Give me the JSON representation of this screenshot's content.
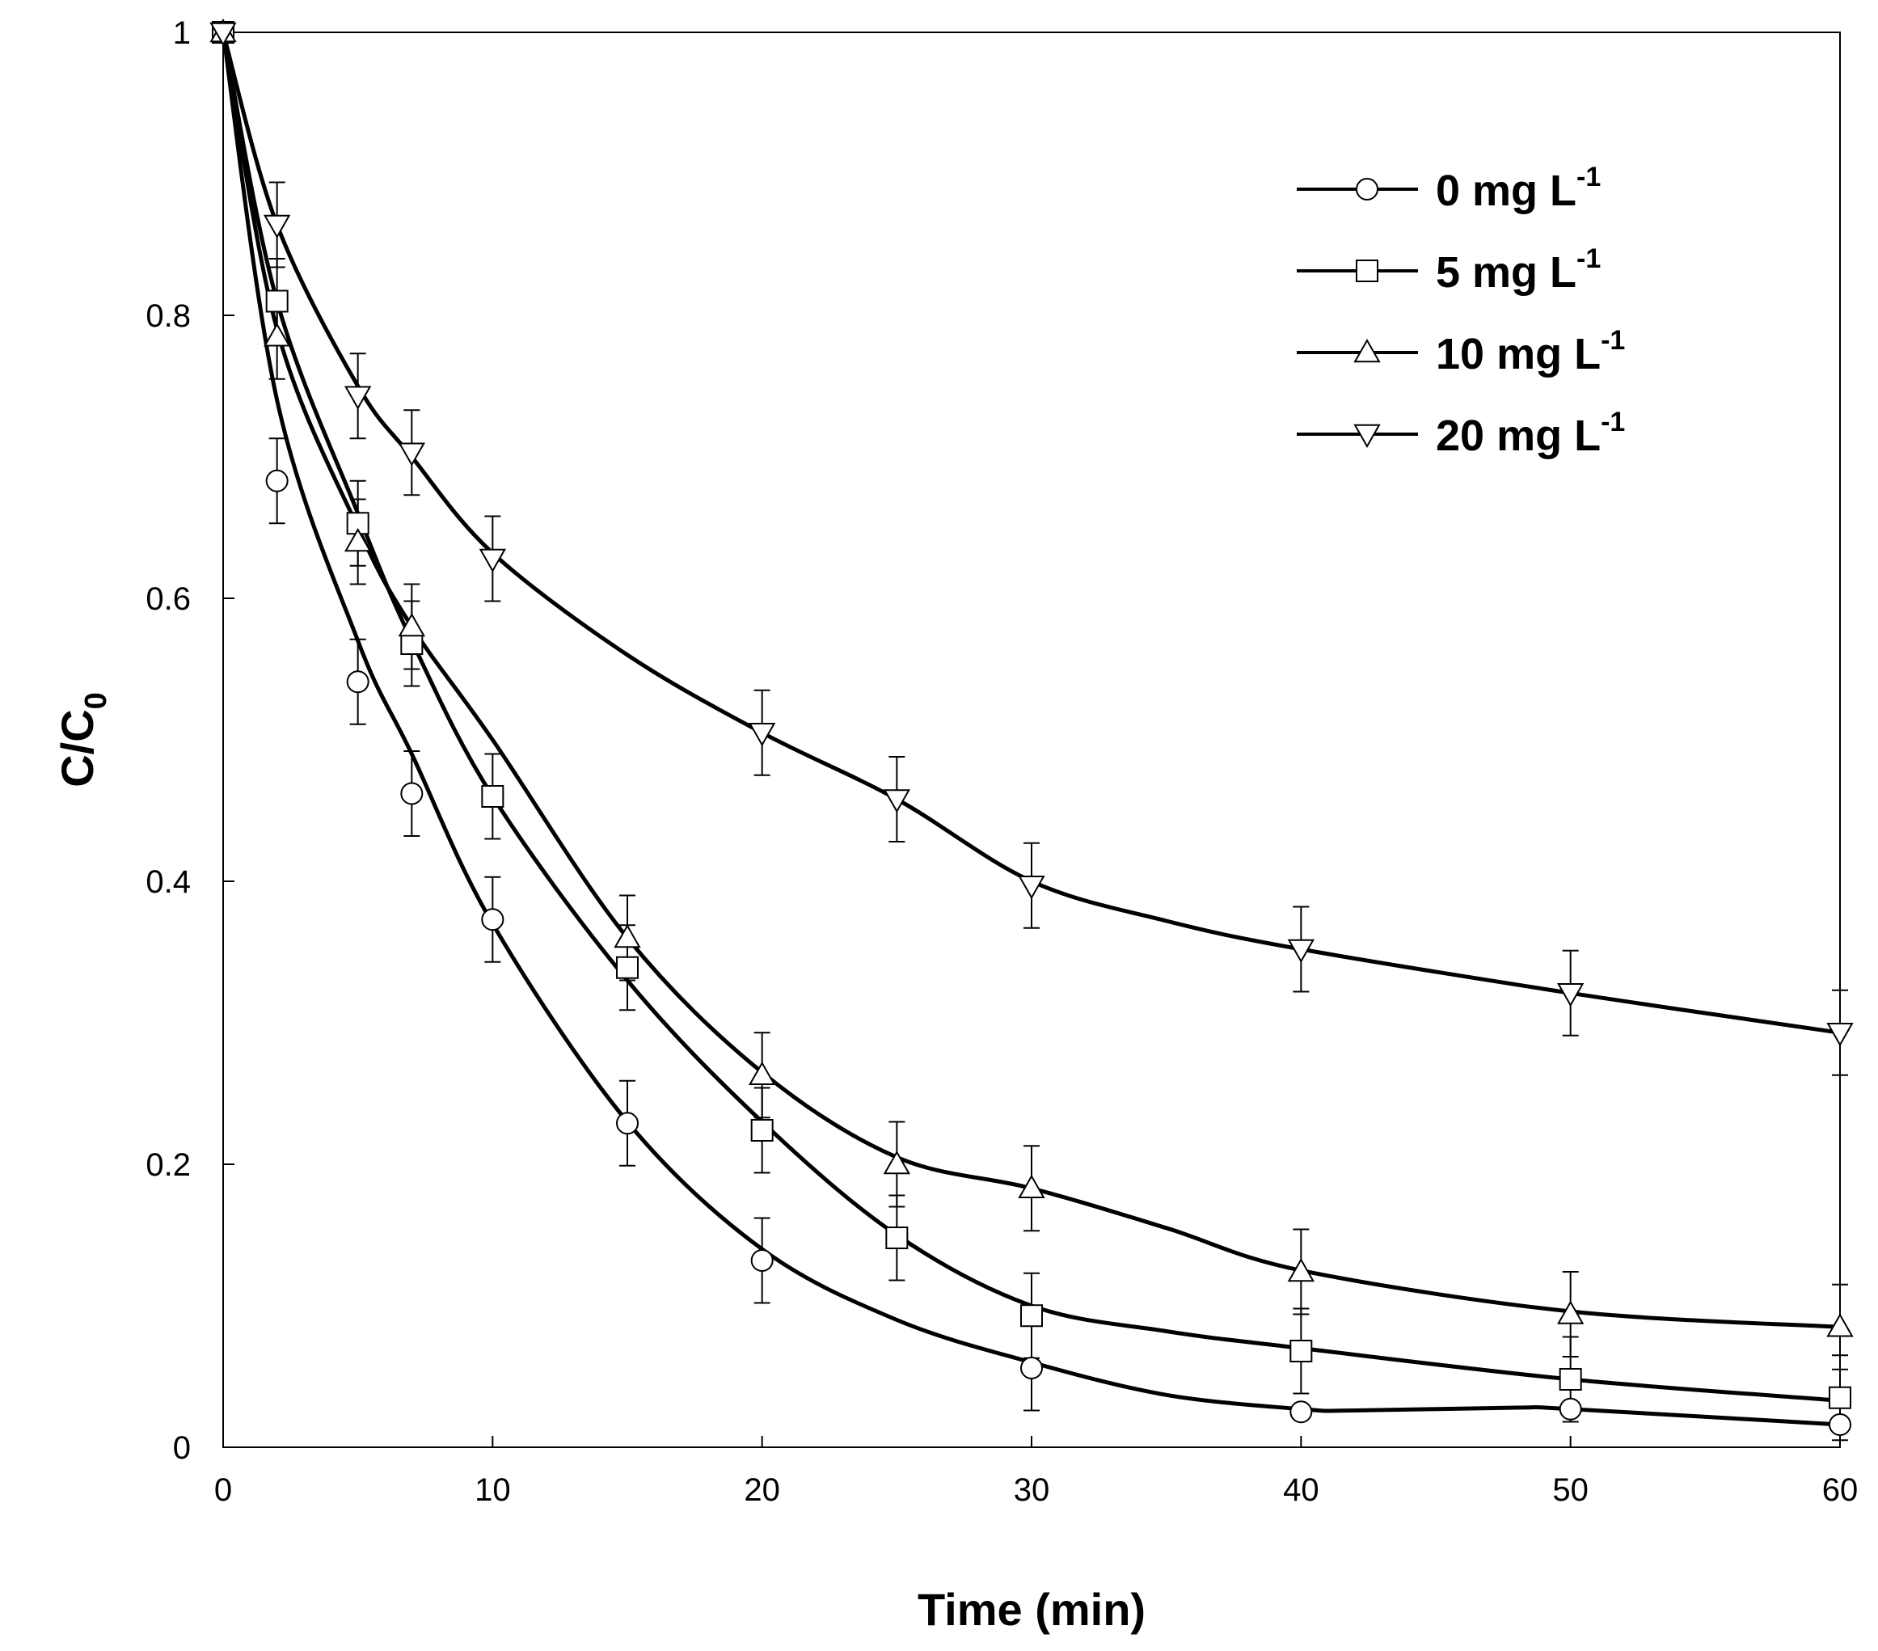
{
  "chart_data": {
    "type": "line",
    "title": "",
    "xlabel": "Time (min)",
    "ylabel": "C/C",
    "ylabel_subscript": "0",
    "xlim": [
      0,
      60
    ],
    "ylim": [
      0,
      1
    ],
    "xticks": [
      0,
      10,
      20,
      30,
      40,
      50,
      60
    ],
    "xtick_labels": [
      "0",
      "10",
      "20",
      "30",
      "40",
      "50",
      "60"
    ],
    "yticks": [
      0,
      0.2,
      0.4,
      0.6,
      0.8,
      1
    ],
    "ytick_labels": [
      "0",
      "0.2",
      "0.4",
      "0.6",
      "0.8",
      "1"
    ],
    "grid": false,
    "legend_position": "top-right",
    "x": [
      0,
      2,
      5,
      7,
      10,
      15,
      20,
      25,
      30,
      40,
      50,
      60
    ],
    "series": [
      {
        "name": "0 mg L-1",
        "label_main": "0 mg L",
        "label_sup": "-1",
        "marker": "circle",
        "values": [
          1.0,
          0.683,
          0.541,
          0.462,
          0.373,
          0.229,
          0.132,
          null,
          0.056,
          0.025,
          0.027,
          0.016
        ],
        "error": [
          0,
          0.03,
          0.03,
          0.03,
          0.03,
          0.03,
          0.03,
          null,
          0.03,
          0,
          0,
          0
        ]
      },
      {
        "name": "5 mg L-1",
        "label_main": "5 mg L",
        "label_sup": "-1",
        "marker": "square",
        "values": [
          1.0,
          0.81,
          0.653,
          0.568,
          0.46,
          0.339,
          0.224,
          0.148,
          0.093,
          0.068,
          0.048,
          0.035
        ],
        "error": [
          0,
          0.03,
          0.03,
          0.03,
          0.03,
          0.03,
          0.03,
          0.03,
          0.03,
          0.03,
          0.03,
          0.03
        ]
      },
      {
        "name": "10 mg L-1",
        "label_main": "10 mg L",
        "label_sup": "-1",
        "marker": "triangle-up",
        "values": [
          1.0,
          0.785,
          0.64,
          0.58,
          null,
          0.36,
          0.263,
          0.2,
          0.183,
          0.124,
          0.094,
          0.085
        ],
        "error": [
          0,
          0.03,
          0.03,
          0.03,
          null,
          0.03,
          0.03,
          0.03,
          0.03,
          0.03,
          0.03,
          0.03
        ]
      },
      {
        "name": "20 mg L-1",
        "label_main": "20 mg L",
        "label_sup": "-1",
        "marker": "triangle-down",
        "values": [
          1.0,
          0.864,
          0.743,
          0.703,
          0.628,
          null,
          0.505,
          0.458,
          0.397,
          0.352,
          0.321,
          0.293
        ],
        "error": [
          0,
          0.03,
          0.03,
          0.03,
          0.03,
          null,
          0.03,
          0.03,
          0.03,
          0.03,
          0.03,
          0.03
        ]
      }
    ],
    "curves": [
      {
        "series": "0 mg L-1",
        "x": [
          0,
          2,
          5,
          7,
          10,
          15,
          20,
          25,
          30,
          35,
          40,
          42,
          48,
          50,
          60
        ],
        "y": [
          1.0,
          0.74,
          0.57,
          0.49,
          0.37,
          0.23,
          0.14,
          0.09,
          0.06,
          0.037,
          0.027,
          0.026,
          0.028,
          0.027,
          0.016
        ]
      },
      {
        "series": "5 mg L-1",
        "x": [
          0,
          2,
          5,
          7,
          10,
          15,
          20,
          25,
          30,
          35,
          40,
          50,
          60
        ],
        "y": [
          1.0,
          0.81,
          0.66,
          0.57,
          0.46,
          0.33,
          0.23,
          0.15,
          0.1,
          0.082,
          0.07,
          0.048,
          0.033
        ]
      },
      {
        "series": "10 mg L-1",
        "x": [
          0,
          2,
          5,
          7,
          10,
          15,
          20,
          25,
          30,
          35,
          40,
          50,
          60
        ],
        "y": [
          1.0,
          0.79,
          0.65,
          0.58,
          0.5,
          0.36,
          0.265,
          0.205,
          0.183,
          0.155,
          0.125,
          0.096,
          0.085
        ]
      },
      {
        "series": "20 mg L-1",
        "x": [
          0,
          2,
          5,
          7,
          10,
          15,
          20,
          25,
          30,
          35,
          40,
          50,
          60
        ],
        "y": [
          1.0,
          0.864,
          0.75,
          0.7,
          0.632,
          0.56,
          0.505,
          0.458,
          0.4,
          0.372,
          0.352,
          0.321,
          0.293
        ]
      }
    ]
  }
}
